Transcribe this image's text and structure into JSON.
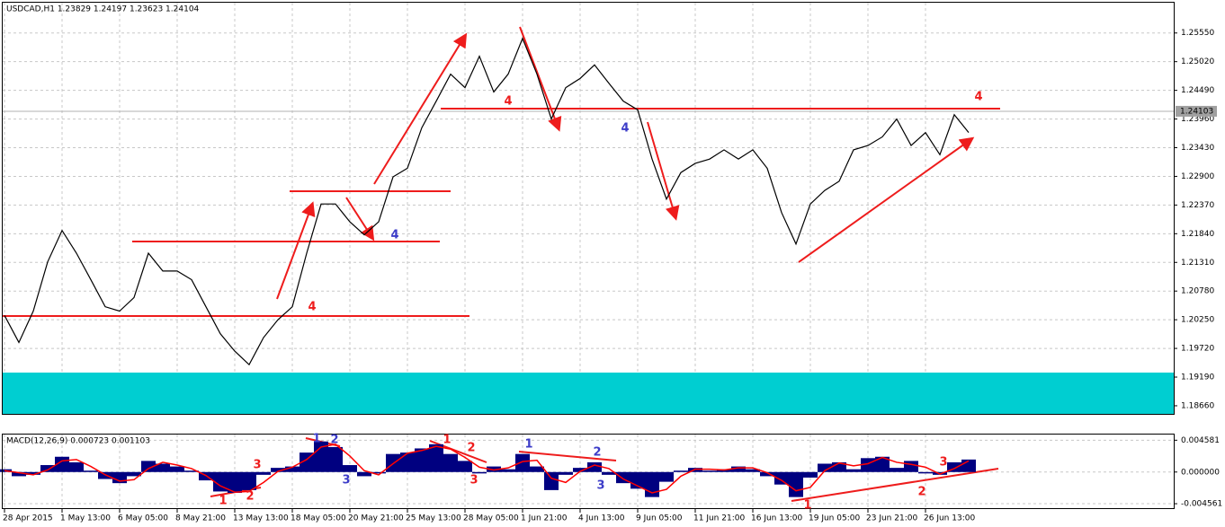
{
  "header": "USDCAD,H1  1.23829 1.24197 1.23623 1.24104",
  "chart_data": [
    {
      "type": "line",
      "title": "USDCAD,H1  1.23829 1.24197 1.23623 1.24104",
      "categories": [
        "28 Apr 2015",
        null,
        null,
        null,
        "1 May 13:00",
        null,
        null,
        null,
        "6 May 05:00",
        null,
        null,
        null,
        "8 May 21:00",
        null,
        null,
        null,
        "13 May 13:00",
        null,
        null,
        null,
        "18 May 05:00",
        null,
        null,
        null,
        "20 May 21:00",
        null,
        null,
        null,
        "25 May 13:00",
        null,
        null,
        null,
        "28 May 05:00",
        null,
        null,
        null,
        "1 Jun 21:00",
        null,
        null,
        null,
        "4 Jun 13:00",
        null,
        null,
        null,
        "9 Jun 05:00",
        null,
        null,
        null,
        "11 Jun 21:00",
        null,
        null,
        null,
        "16 Jun 13:00",
        null,
        null,
        null,
        "19 Jun 05:00",
        null,
        null,
        null,
        "23 Jun 21:00",
        null,
        null,
        null,
        "26 Jun 13:00",
        null,
        null,
        null
      ],
      "series": [
        {
          "name": "USDCAD",
          "color": "#000000",
          "values": [
            1.2033,
            1.1983,
            1.2041,
            1.2132,
            1.219,
            1.2148,
            1.2099,
            1.2049,
            1.2041,
            1.2066,
            1.2148,
            1.2115,
            1.2115,
            1.2099,
            1.2049,
            1.1999,
            1.1967,
            1.1942,
            1.1992,
            1.2025,
            1.2049,
            1.2148,
            1.2239,
            1.2239,
            1.2206,
            1.2182,
            1.2206,
            1.2289,
            1.2305,
            1.238,
            1.2429,
            1.2479,
            1.2454,
            1.2512,
            1.2446,
            1.2479,
            1.2545,
            1.2479,
            1.2396,
            1.2454,
            1.2471,
            1.2496,
            1.2462,
            1.2429,
            1.2413,
            1.2322,
            1.2248,
            1.2297,
            1.2314,
            1.2322,
            1.2339,
            1.2322,
            1.2339,
            1.2305,
            1.2223,
            1.2165,
            1.2239,
            1.2264,
            1.2281,
            1.2339,
            1.2347,
            1.2363,
            1.2396,
            1.2347,
            1.2371,
            1.233,
            1.2404,
            1.2371
          ]
        }
      ],
      "ylim": [
        1.1851,
        1.2611
      ],
      "yticks": [
        {
          "value": 1.2555,
          "label": "1.25550"
        },
        {
          "value": 1.2502,
          "label": "1.25020"
        },
        {
          "value": 1.2449,
          "label": "1.24490"
        },
        {
          "value": 1.2396,
          "label": "1.23960"
        },
        {
          "value": 1.2343,
          "label": "1.23430"
        },
        {
          "value": 1.229,
          "label": "1.22900"
        },
        {
          "value": 1.2237,
          "label": "1.22370"
        },
        {
          "value": 1.2184,
          "label": "1.21840"
        },
        {
          "value": 1.2131,
          "label": "1.21310"
        },
        {
          "value": 1.2078,
          "label": "1.20780"
        },
        {
          "value": 1.2025,
          "label": "1.20250"
        },
        {
          "value": 1.1972,
          "label": "1.19720"
        },
        {
          "value": 1.1919,
          "label": "1.19190"
        },
        {
          "value": 1.1866,
          "label": "1.18660"
        }
      ],
      "last_price": 1.24103,
      "grid": true,
      "annotations": [
        {
          "text": "4",
          "color": "#ee1c1c"
        },
        {
          "text": "4",
          "color": "#3c3cc8"
        },
        {
          "text": "4",
          "color": "#ee1c1c"
        },
        {
          "text": "4",
          "color": "#3c3cc8"
        },
        {
          "text": "4",
          "color": "#ee1c1c"
        }
      ]
    },
    {
      "type": "macd",
      "title": "MACD(12,26,9) 0.000723 0.001103",
      "series": [
        {
          "name": "MACD",
          "color": "#000080",
          "values": [
            0.0004,
            -0.0006,
            -0.0004,
            0.001,
            0.0022,
            0.0014,
            0.0002,
            -0.001,
            -0.0016,
            -0.0006,
            0.0016,
            0.0012,
            0.0008,
            0.0002,
            -0.0012,
            -0.0028,
            -0.003,
            -0.0026,
            -0.0004,
            0.0006,
            0.0008,
            0.0028,
            0.0044,
            0.0036,
            0.001,
            -0.0006,
            -0.0002,
            0.0026,
            0.0028,
            0.0034,
            0.004,
            0.0026,
            0.0016,
            -0.0002,
            0.0008,
            0.0004,
            0.0026,
            0.0008,
            -0.0026,
            -0.0004,
            0.0006,
            0.0014,
            -0.0004,
            -0.0016,
            -0.0024,
            -0.0036,
            -0.0014,
            0.0002,
            0.0006,
            0.0002,
            0.0004,
            0.0008,
            0.0004,
            -0.0006,
            -0.0018,
            -0.0036,
            -0.0008,
            0.0012,
            0.0014,
            0.0004,
            0.002,
            0.0022,
            0.0006,
            0.0016,
            -0.0002,
            -0.0004,
            0.0014,
            0.0018
          ]
        },
        {
          "name": "Signal",
          "color": "#ff0000",
          "values": [
            0.0002,
            -0.0001,
            -0.0004,
            0.0003,
            0.0016,
            0.0018,
            0.0008,
            -0.0004,
            -0.0013,
            -0.0011,
            0.0005,
            0.0014,
            0.001,
            0.0005,
            -0.0005,
            -0.002,
            -0.0029,
            -0.0028,
            -0.0015,
            0.0001,
            0.0007,
            0.0018,
            0.0036,
            0.004,
            0.0023,
            0.0002,
            -0.0004,
            0.0012,
            0.0027,
            0.0031,
            0.0037,
            0.0033,
            0.0021,
            0.0007,
            0.0003,
            0.0006,
            0.0015,
            0.0017,
            -0.0009,
            -0.0015,
            0.0001,
            0.001,
            0.0005,
            -0.001,
            -0.002,
            -0.003,
            -0.0025,
            -0.0006,
            0.0004,
            0.0004,
            0.0003,
            0.0006,
            0.0006,
            -0.0001,
            -0.0012,
            -0.0027,
            -0.0022,
            0.0002,
            0.0013,
            0.0009,
            0.0012,
            0.0021,
            0.0014,
            0.0011,
            0.0007,
            -0.0003,
            0.0005,
            0.0016
          ]
        }
      ],
      "ylim": [
        -0.0052,
        0.0054
      ],
      "yticks": [
        0.004581,
        {
          "value": 0,
          "label": "0.000000"
        },
        -0.004561
      ],
      "annotations": [
        {
          "text": "1",
          "color": "#3c3cc8"
        },
        {
          "text": "2",
          "color": "#3c3cc8"
        },
        {
          "text": "3",
          "color": "#ee1c1c"
        },
        {
          "text": "1",
          "color": "#ee1c1c"
        },
        {
          "text": "2",
          "color": "#ee1c1c"
        },
        {
          "text": "3",
          "color": "#3c3cc8"
        },
        {
          "text": "1",
          "color": "#ee1c1c"
        },
        {
          "text": "2",
          "color": "#ee1c1c"
        },
        {
          "text": "3",
          "color": "#ee1c1c"
        },
        {
          "text": "1",
          "color": "#3c3cc8"
        },
        {
          "text": "2",
          "color": "#3c3cc8"
        },
        {
          "text": "3",
          "color": "#3c3cc8"
        },
        {
          "text": "1",
          "color": "#ee1c1c"
        },
        {
          "text": "2",
          "color": "#ee1c1c"
        },
        {
          "text": "3",
          "color": "#ee1c1c"
        }
      ]
    }
  ]
}
